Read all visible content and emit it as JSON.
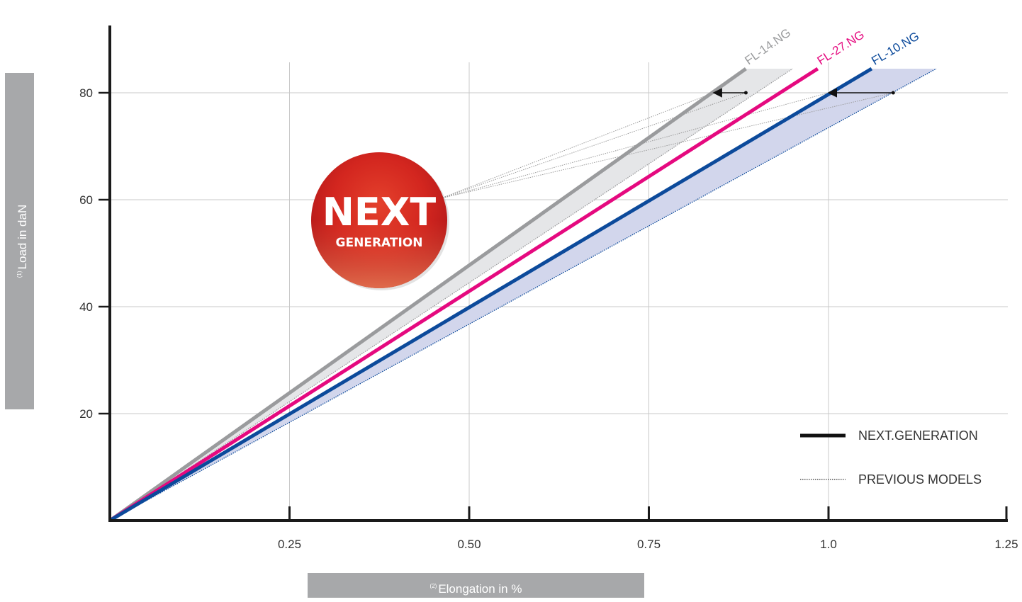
{
  "chart_data": {
    "type": "line",
    "xlabel": {
      "note": "(2)",
      "text": "Elongation in %"
    },
    "ylabel": {
      "note": "(1)",
      "text": "Load in daN"
    },
    "xlim": [
      0,
      1.25
    ],
    "ylim": [
      0,
      92
    ],
    "x_ticks": [
      {
        "value": 0.25,
        "label": "0.25"
      },
      {
        "value": 0.5,
        "label": "0.50"
      },
      {
        "value": 0.75,
        "label": "0.75"
      },
      {
        "value": 1.0,
        "label": "1.0"
      },
      {
        "value": 1.25,
        "label": "1.25"
      }
    ],
    "y_ticks": [
      {
        "value": 20,
        "label": "20"
      },
      {
        "value": 40,
        "label": "40"
      },
      {
        "value": 60,
        "label": "60"
      },
      {
        "value": 80,
        "label": "80"
      }
    ],
    "grid": true,
    "series": [
      {
        "name": "FL-14.NG",
        "color": "#9a9b9d",
        "style": "solid",
        "x": [
          0,
          0.885
        ],
        "y": [
          0,
          84.5
        ],
        "previous": {
          "x": [
            0,
            0.95
          ],
          "y": [
            0,
            84.5
          ],
          "fill": "#e5e6e8"
        }
      },
      {
        "name": "FL-27.NG",
        "color": "#e5097f",
        "style": "solid",
        "x": [
          0,
          0.985
        ],
        "y": [
          0,
          84.5
        ]
      },
      {
        "name": "FL-10.NG",
        "color": "#0c4a9b",
        "style": "solid",
        "x": [
          0,
          1.06
        ],
        "y": [
          0,
          84.5
        ],
        "previous": {
          "x": [
            0,
            1.15
          ],
          "y": [
            0,
            84.5
          ],
          "fill": "#d2d6ec"
        }
      }
    ],
    "improvement_arrows": [
      {
        "from": [
          0.885,
          80
        ],
        "to": [
          0.84,
          80
        ]
      },
      {
        "from": [
          1.09,
          80
        ],
        "to": [
          1.0,
          80
        ]
      }
    ],
    "badge": {
      "line1": "NEXT",
      "line2": "GENERATION"
    },
    "legend": {
      "placement": "bottom-right",
      "items": [
        {
          "label": "NEXT.GENERATION",
          "style": "solid"
        },
        {
          "label": "PREVIOUS MODELS",
          "style": "dotted"
        }
      ]
    }
  }
}
